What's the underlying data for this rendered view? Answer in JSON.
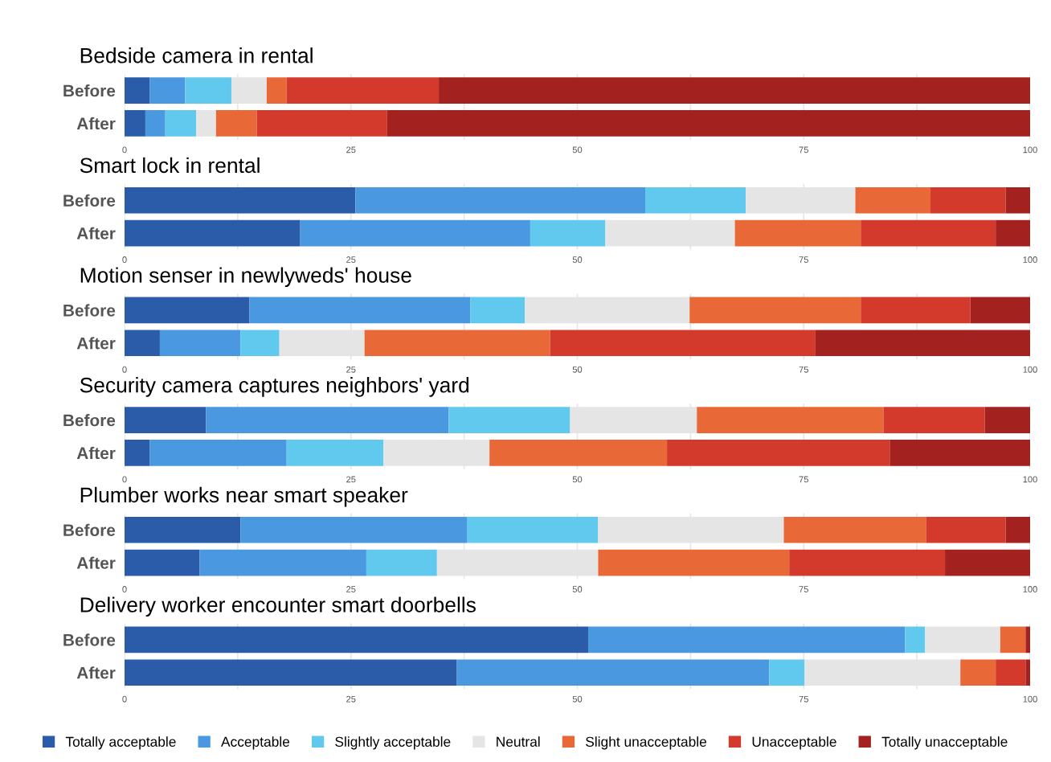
{
  "chart_data": [
    {
      "type": "bar",
      "orientation": "horizontal",
      "stacked": true,
      "title": "Bedside camera in rental",
      "categories": [
        "Before",
        "After"
      ],
      "xlim": [
        0,
        100
      ],
      "xticks": [
        0,
        {
          "value": 12.5,
          "label": null
        },
        25,
        {
          "value": 37.5,
          "label": null
        },
        50,
        {
          "value": 62.5,
          "label": null
        },
        75,
        {
          "value": 87.5,
          "label": null
        },
        100
      ],
      "grid": "x",
      "series": [
        {
          "color": "#2a5caa",
          "values": [
            2.8,
            2.3
          ]
        },
        {
          "color": "#4a98e0",
          "values": [
            3.9,
            2.2
          ]
        },
        {
          "color": "#62c9ee",
          "values": [
            5.1,
            3.4
          ]
        },
        {
          "color": "#e5e5e5",
          "values": [
            3.9,
            2.2
          ]
        },
        {
          "color": "#e96838",
          "values": [
            2.2,
            4.5
          ]
        },
        {
          "color": "#d33a2c",
          "values": [
            16.8,
            14.4
          ]
        },
        {
          "color": "#a3211f",
          "values": [
            65.3,
            71.0
          ]
        }
      ]
    },
    {
      "type": "bar",
      "orientation": "horizontal",
      "stacked": true,
      "title": "Smart lock in rental",
      "categories": [
        "Before",
        "After"
      ],
      "xlim": [
        0,
        100
      ],
      "xticks": [
        0,
        {
          "value": 12.5,
          "label": null
        },
        25,
        {
          "value": 37.5,
          "label": null
        },
        50,
        {
          "value": 62.5,
          "label": null
        },
        75,
        {
          "value": 87.5,
          "label": null
        },
        100
      ],
      "grid": "x",
      "series": [
        {
          "color": "#2a5caa",
          "values": [
            25.5,
            19.4
          ]
        },
        {
          "color": "#4a98e0",
          "values": [
            32.0,
            25.4
          ]
        },
        {
          "color": "#62c9ee",
          "values": [
            11.1,
            8.3
          ]
        },
        {
          "color": "#e5e5e5",
          "values": [
            12.1,
            14.3
          ]
        },
        {
          "color": "#e96838",
          "values": [
            8.3,
            13.9
          ]
        },
        {
          "color": "#d33a2c",
          "values": [
            8.3,
            14.9
          ]
        },
        {
          "color": "#a3211f",
          "values": [
            2.7,
            3.8
          ]
        }
      ]
    },
    {
      "type": "bar",
      "orientation": "horizontal",
      "stacked": true,
      "title": "Motion senser in newlyweds' house",
      "categories": [
        "Before",
        "After"
      ],
      "xlim": [
        0,
        100
      ],
      "xticks": [
        0,
        {
          "value": 12.5,
          "label": null
        },
        25,
        {
          "value": 37.5,
          "label": null
        },
        50,
        {
          "value": 62.5,
          "label": null
        },
        75,
        {
          "value": 87.5,
          "label": null
        },
        100
      ],
      "grid": "x",
      "series": [
        {
          "color": "#2a5caa",
          "values": [
            13.8,
            3.9
          ]
        },
        {
          "color": "#4a98e0",
          "values": [
            24.4,
            8.9
          ]
        },
        {
          "color": "#62c9ee",
          "values": [
            6.0,
            4.3
          ]
        },
        {
          "color": "#e5e5e5",
          "values": [
            18.2,
            9.4
          ]
        },
        {
          "color": "#e96838",
          "values": [
            18.9,
            20.5
          ]
        },
        {
          "color": "#d33a2c",
          "values": [
            12.1,
            29.3
          ]
        },
        {
          "color": "#a3211f",
          "values": [
            6.6,
            23.7
          ]
        }
      ]
    },
    {
      "type": "bar",
      "orientation": "horizontal",
      "stacked": true,
      "title": "Security camera captures neighbors' yard",
      "categories": [
        "Before",
        "After"
      ],
      "xlim": [
        0,
        100
      ],
      "xticks": [
        0,
        {
          "value": 12.5,
          "label": null
        },
        25,
        {
          "value": 37.5,
          "label": null
        },
        50,
        {
          "value": 62.5,
          "label": null
        },
        75,
        {
          "value": 87.5,
          "label": null
        },
        100
      ],
      "grid": "x",
      "series": [
        {
          "color": "#2a5caa",
          "values": [
            9.0,
            2.8
          ]
        },
        {
          "color": "#4a98e0",
          "values": [
            26.8,
            15.1
          ]
        },
        {
          "color": "#62c9ee",
          "values": [
            13.4,
            10.7
          ]
        },
        {
          "color": "#e5e5e5",
          "values": [
            14.0,
            11.7
          ]
        },
        {
          "color": "#e96838",
          "values": [
            20.6,
            19.6
          ]
        },
        {
          "color": "#d33a2c",
          "values": [
            11.2,
            24.6
          ]
        },
        {
          "color": "#a3211f",
          "values": [
            5.0,
            15.5
          ]
        }
      ]
    },
    {
      "type": "bar",
      "orientation": "horizontal",
      "stacked": true,
      "title": "Plumber works near smart speaker",
      "categories": [
        "Before",
        "After"
      ],
      "xlim": [
        0,
        100
      ],
      "xticks": [
        0,
        {
          "value": 12.5,
          "label": null
        },
        25,
        {
          "value": 37.5,
          "label": null
        },
        50,
        {
          "value": 62.5,
          "label": null
        },
        75,
        {
          "value": 87.5,
          "label": null
        },
        100
      ],
      "grid": "x",
      "series": [
        {
          "color": "#2a5caa",
          "values": [
            12.8,
            8.3
          ]
        },
        {
          "color": "#4a98e0",
          "values": [
            25.0,
            18.4
          ]
        },
        {
          "color": "#62c9ee",
          "values": [
            14.5,
            7.8
          ]
        },
        {
          "color": "#e5e5e5",
          "values": [
            20.5,
            17.8
          ]
        },
        {
          "color": "#e96838",
          "values": [
            15.7,
            21.1
          ]
        },
        {
          "color": "#d33a2c",
          "values": [
            8.8,
            17.2
          ]
        },
        {
          "color": "#a3211f",
          "values": [
            2.7,
            9.4
          ]
        }
      ]
    },
    {
      "type": "bar",
      "orientation": "horizontal",
      "stacked": true,
      "title": "Delivery worker encounter smart doorbells",
      "categories": [
        "Before",
        "After"
      ],
      "xlim": [
        0,
        100
      ],
      "xticks": [
        0,
        {
          "value": 12.5,
          "label": null
        },
        25,
        {
          "value": 37.5,
          "label": null
        },
        50,
        {
          "value": 62.5,
          "label": null
        },
        75,
        {
          "value": 87.5,
          "label": null
        },
        100
      ],
      "grid": "x",
      "legend": "bottom",
      "series": [
        {
          "name": "Totally acceptable",
          "color": "#2a5caa",
          "values": [
            51.2,
            36.7
          ]
        },
        {
          "name": "Acceptable",
          "color": "#4a98e0",
          "values": [
            35.0,
            34.5
          ]
        },
        {
          "name": "Slightly acceptable",
          "color": "#62c9ee",
          "values": [
            2.2,
            3.9
          ]
        },
        {
          "name": "Neutral",
          "color": "#e5e5e5",
          "values": [
            8.3,
            17.2
          ]
        },
        {
          "name": "Slight unacceptable",
          "color": "#e96838",
          "values": [
            2.8,
            3.9
          ]
        },
        {
          "name": "Unacceptable",
          "color": "#d33a2c",
          "values": [
            0,
            3.3
          ]
        },
        {
          "name": "Totally unacceptable",
          "color": "#a3211f",
          "values": [
            0.5,
            0.5
          ]
        }
      ]
    }
  ]
}
